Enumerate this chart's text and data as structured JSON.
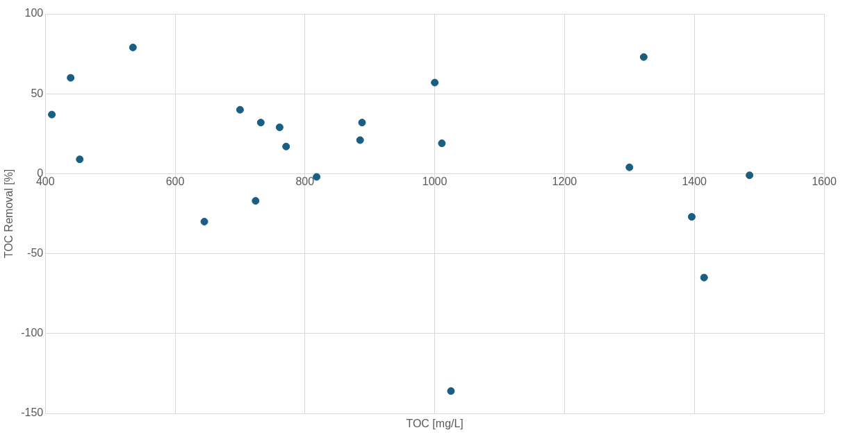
{
  "chart_data": {
    "type": "scatter",
    "xlabel": "TOC [mg/L]",
    "ylabel": "TOC Removal [%]",
    "x": [
      410,
      439,
      453,
      535,
      645,
      700,
      724,
      732,
      761,
      771,
      818,
      885,
      888,
      1000,
      1011,
      1025,
      1300,
      1322,
      1396,
      1415,
      1485
    ],
    "series": [
      {
        "color": "#1a5e82",
        "values": [
          37,
          60,
          9,
          79,
          -30,
          40,
          -17,
          32,
          29,
          17,
          -2,
          21,
          32,
          57,
          19,
          -136,
          4,
          73,
          -27,
          -65,
          -1
        ]
      }
    ],
    "xlim": [
      400,
      1600
    ],
    "xticks": [
      400,
      600,
      800,
      1000,
      1200,
      1400,
      1600
    ],
    "ylim": [
      -150,
      100
    ],
    "yticks": [
      -150,
      -100,
      -50,
      0,
      50,
      100
    ],
    "grid": true,
    "marker": "circle"
  }
}
